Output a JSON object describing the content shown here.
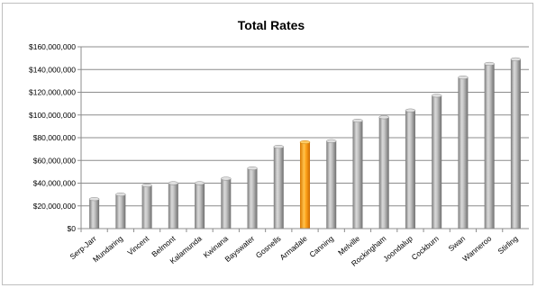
{
  "chart_data": {
    "type": "bar",
    "title": "Total Rates",
    "xlabel": "",
    "ylabel": "",
    "ylim": [
      0,
      160000000
    ],
    "ytick_step": 20000000,
    "yticks": [
      "$0",
      "$20,000,000",
      "$40,000,000",
      "$60,000,000",
      "$80,000,000",
      "$100,000,000",
      "$120,000,000",
      "$140,000,000",
      "$160,000,000"
    ],
    "categories": [
      "Serp-Jarr",
      "Mundaring",
      "Vincent",
      "Belmont",
      "Kalamunda",
      "Kwinana",
      "Bayswater",
      "Gosnells",
      "Armadale",
      "Canning",
      "Melville",
      "Rockingham",
      "Joondalup",
      "Cockburn",
      "Swan",
      "Wanneroo",
      "Stirling"
    ],
    "values": [
      26000000,
      30000000,
      38000000,
      40000000,
      40000000,
      44000000,
      53000000,
      72000000,
      76000000,
      77000000,
      95000000,
      98000000,
      104000000,
      117000000,
      133000000,
      145000000,
      149000000
    ],
    "highlight": "Armadale",
    "grid": true,
    "legend": "none",
    "colors": {
      "bar": "#a6a6a6",
      "highlight": "#ff9900",
      "grid": "#8c8c8c"
    }
  }
}
